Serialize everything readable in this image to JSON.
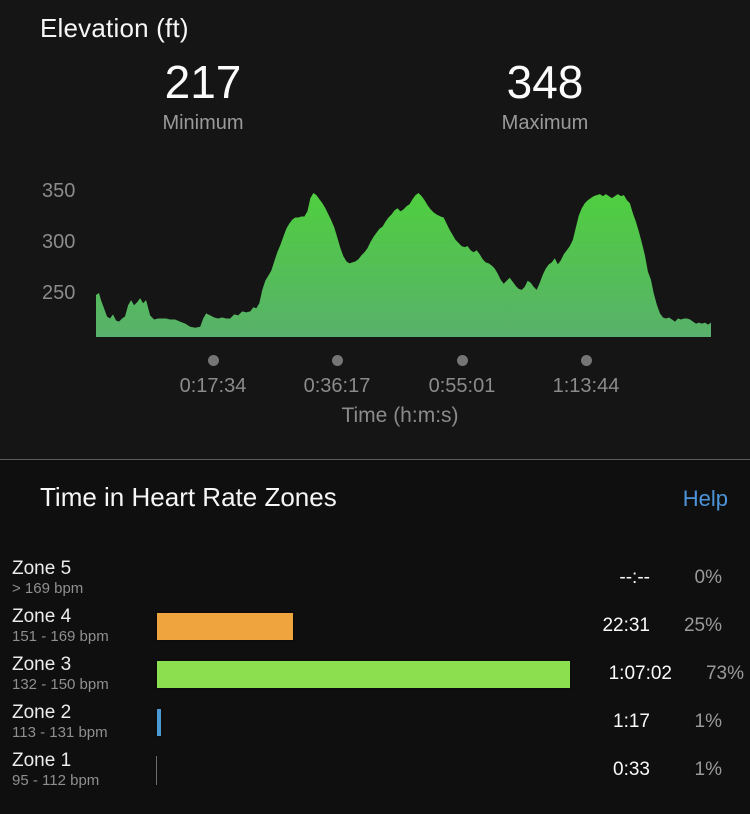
{
  "elevation": {
    "title": "Elevation (ft)",
    "min": {
      "value": "217",
      "label": "Minimum"
    },
    "max": {
      "value": "348",
      "label": "Maximum"
    }
  },
  "chart_data": {
    "type": "area",
    "title": "Elevation (ft)",
    "xlabel": "Time (h:m:s)",
    "ylabel": "Elevation (ft)",
    "ylim": [
      207,
      355
    ],
    "grid": false,
    "min_ft": 217,
    "max_ft": 348,
    "yticks": [
      "350",
      "300",
      "250"
    ],
    "xticks": [
      {
        "label": "0:17:34",
        "seconds": 1054
      },
      {
        "label": "0:36:17",
        "seconds": 2177
      },
      {
        "label": "0:55:01",
        "seconds": 3301
      },
      {
        "label": "1:13:44",
        "seconds": 4424
      }
    ],
    "area_gradient": [
      "#4fd03d",
      "#58b16a"
    ],
    "profile_sec_ft": [
      [
        0,
        248
      ],
      [
        27,
        250
      ],
      [
        45,
        243
      ],
      [
        72,
        235
      ],
      [
        99,
        227
      ],
      [
        126,
        225
      ],
      [
        153,
        229
      ],
      [
        180,
        223
      ],
      [
        207,
        222
      ],
      [
        234,
        225
      ],
      [
        261,
        227
      ],
      [
        288,
        238
      ],
      [
        315,
        243
      ],
      [
        342,
        238
      ],
      [
        369,
        241
      ],
      [
        396,
        245
      ],
      [
        423,
        240
      ],
      [
        450,
        243
      ],
      [
        486,
        228
      ],
      [
        522,
        224
      ],
      [
        558,
        225
      ],
      [
        594,
        225
      ],
      [
        630,
        225
      ],
      [
        666,
        224
      ],
      [
        711,
        224
      ],
      [
        756,
        222
      ],
      [
        801,
        220
      ],
      [
        846,
        217
      ],
      [
        891,
        216
      ],
      [
        936,
        217
      ],
      [
        963,
        225
      ],
      [
        990,
        230
      ],
      [
        1026,
        228
      ],
      [
        1062,
        226
      ],
      [
        1098,
        225
      ],
      [
        1134,
        226
      ],
      [
        1170,
        225
      ],
      [
        1206,
        225
      ],
      [
        1242,
        229
      ],
      [
        1278,
        228
      ],
      [
        1314,
        232
      ],
      [
        1350,
        231
      ],
      [
        1386,
        232
      ],
      [
        1413,
        236
      ],
      [
        1440,
        235
      ],
      [
        1467,
        240
      ],
      [
        1494,
        253
      ],
      [
        1521,
        262
      ],
      [
        1548,
        267
      ],
      [
        1575,
        272
      ],
      [
        1602,
        281
      ],
      [
        1629,
        290
      ],
      [
        1656,
        297
      ],
      [
        1683,
        305
      ],
      [
        1710,
        313
      ],
      [
        1737,
        318
      ],
      [
        1764,
        322
      ],
      [
        1791,
        324
      ],
      [
        1818,
        324
      ],
      [
        1845,
        325
      ],
      [
        1872,
        325
      ],
      [
        1899,
        330
      ],
      [
        1926,
        343
      ],
      [
        1953,
        348
      ],
      [
        1980,
        346
      ],
      [
        2007,
        342
      ],
      [
        2034,
        338
      ],
      [
        2061,
        333
      ],
      [
        2088,
        327
      ],
      [
        2115,
        321
      ],
      [
        2142,
        314
      ],
      [
        2169,
        304
      ],
      [
        2196,
        294
      ],
      [
        2223,
        286
      ],
      [
        2250,
        281
      ],
      [
        2277,
        279
      ],
      [
        2304,
        280
      ],
      [
        2331,
        281
      ],
      [
        2358,
        283
      ],
      [
        2385,
        287
      ],
      [
        2412,
        290
      ],
      [
        2439,
        294
      ],
      [
        2466,
        300
      ],
      [
        2493,
        305
      ],
      [
        2520,
        309
      ],
      [
        2547,
        313
      ],
      [
        2574,
        315
      ],
      [
        2601,
        320
      ],
      [
        2628,
        324
      ],
      [
        2655,
        327
      ],
      [
        2682,
        331
      ],
      [
        2709,
        333
      ],
      [
        2736,
        330
      ],
      [
        2763,
        332
      ],
      [
        2790,
        335
      ],
      [
        2817,
        337
      ],
      [
        2844,
        342
      ],
      [
        2871,
        346
      ],
      [
        2898,
        348
      ],
      [
        2925,
        345
      ],
      [
        2952,
        341
      ],
      [
        2979,
        336
      ],
      [
        3006,
        332
      ],
      [
        3033,
        329
      ],
      [
        3060,
        327
      ],
      [
        3096,
        325
      ],
      [
        3123,
        324
      ],
      [
        3150,
        318
      ],
      [
        3177,
        312
      ],
      [
        3204,
        307
      ],
      [
        3231,
        302
      ],
      [
        3258,
        299
      ],
      [
        3285,
        296
      ],
      [
        3312,
        295
      ],
      [
        3339,
        296
      ],
      [
        3366,
        292
      ],
      [
        3393,
        290
      ],
      [
        3420,
        292
      ],
      [
        3447,
        288
      ],
      [
        3474,
        283
      ],
      [
        3501,
        280
      ],
      [
        3528,
        279
      ],
      [
        3555,
        277
      ],
      [
        3582,
        274
      ],
      [
        3609,
        269
      ],
      [
        3636,
        263
      ],
      [
        3663,
        259
      ],
      [
        3690,
        262
      ],
      [
        3717,
        265
      ],
      [
        3744,
        261
      ],
      [
        3771,
        257
      ],
      [
        3798,
        254
      ],
      [
        3825,
        253
      ],
      [
        3852,
        256
      ],
      [
        3879,
        262
      ],
      [
        3906,
        260
      ],
      [
        3933,
        256
      ],
      [
        3960,
        253
      ],
      [
        3987,
        260
      ],
      [
        4014,
        268
      ],
      [
        4041,
        274
      ],
      [
        4068,
        278
      ],
      [
        4095,
        280
      ],
      [
        4122,
        284
      ],
      [
        4149,
        278
      ],
      [
        4176,
        282
      ],
      [
        4203,
        288
      ],
      [
        4230,
        292
      ],
      [
        4257,
        296
      ],
      [
        4284,
        302
      ],
      [
        4311,
        314
      ],
      [
        4338,
        326
      ],
      [
        4365,
        333
      ],
      [
        4392,
        338
      ],
      [
        4419,
        341
      ],
      [
        4446,
        343
      ],
      [
        4473,
        345
      ],
      [
        4500,
        346
      ],
      [
        4527,
        347
      ],
      [
        4554,
        345
      ],
      [
        4581,
        347
      ],
      [
        4608,
        345
      ],
      [
        4635,
        343
      ],
      [
        4662,
        345
      ],
      [
        4689,
        347
      ],
      [
        4716,
        345
      ],
      [
        4743,
        346
      ],
      [
        4770,
        341
      ],
      [
        4797,
        338
      ],
      [
        4824,
        328
      ],
      [
        4851,
        320
      ],
      [
        4878,
        310
      ],
      [
        4905,
        299
      ],
      [
        4932,
        287
      ],
      [
        4959,
        271
      ],
      [
        4986,
        263
      ],
      [
        5013,
        249
      ],
      [
        5040,
        238
      ],
      [
        5067,
        230
      ],
      [
        5094,
        226
      ],
      [
        5121,
        225
      ],
      [
        5148,
        226
      ],
      [
        5175,
        224
      ],
      [
        5202,
        222
      ],
      [
        5229,
        225
      ],
      [
        5256,
        224
      ],
      [
        5283,
        225
      ],
      [
        5310,
        225
      ],
      [
        5337,
        224
      ],
      [
        5364,
        222
      ],
      [
        5391,
        220
      ],
      [
        5418,
        221
      ],
      [
        5445,
        220
      ],
      [
        5472,
        221
      ],
      [
        5499,
        219
      ],
      [
        5526,
        221
      ]
    ]
  },
  "hr_zones": {
    "title": "Time in Heart Rate Zones",
    "help_label": "Help",
    "help_color": "#4d94da",
    "bar_colors": {
      "zone5": null,
      "zone4": "#f0a43e",
      "zone3": "#8ce04f",
      "zone2": "#4a9bd5",
      "zone1": "#707070"
    },
    "zones": [
      {
        "name": "Zone 5",
        "range": "> 169 bpm",
        "time": "--:--",
        "pct": "0%",
        "color": null
      },
      {
        "name": "Zone 4",
        "range": "151 - 169 bpm",
        "time": "22:31",
        "pct": "25%",
        "color": "#f0a43e"
      },
      {
        "name": "Zone 3",
        "range": "132 - 150 bpm",
        "time": "1:07:02",
        "pct": "73%",
        "color": "#8ce04f"
      },
      {
        "name": "Zone 2",
        "range": "113 - 131 bpm",
        "time": "1:17",
        "pct": "1%",
        "color": "#4a9bd5"
      },
      {
        "name": "Zone 1",
        "range": "95 - 112 bpm",
        "time": "0:33",
        "pct": "1%",
        "color": "#707070"
      }
    ]
  }
}
